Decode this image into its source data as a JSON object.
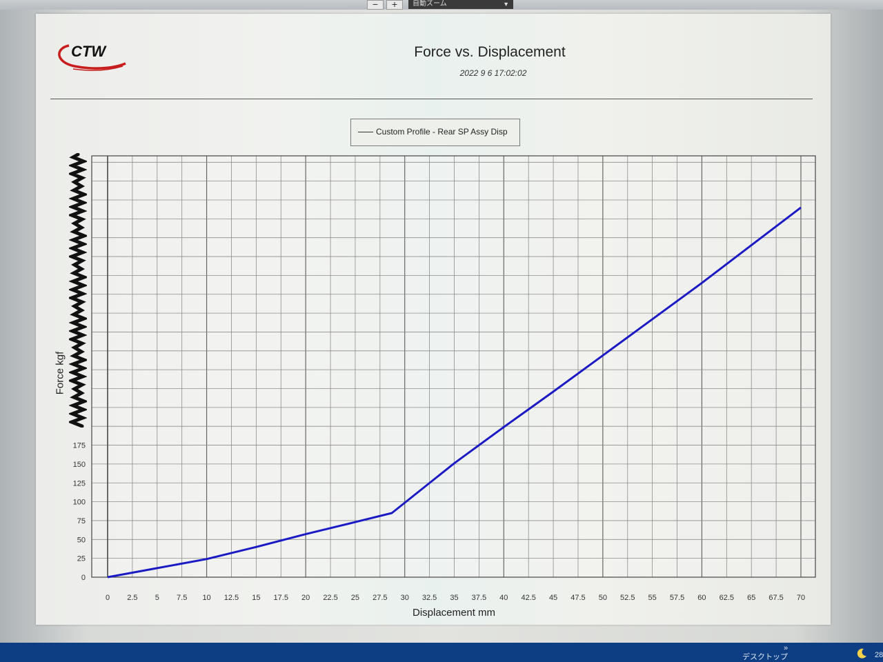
{
  "toolbar": {
    "minus_label": "−",
    "plus_label": "+",
    "zoom_value": "自動ズーム"
  },
  "logo": {
    "text": "CTW"
  },
  "report": {
    "title": "Force vs. Displacement",
    "timestamp": "2022 9 6  17:02:02"
  },
  "legend": {
    "entry": "Custom Profile - Rear SP Assy Disp"
  },
  "colors": {
    "series": "#1b1bc4",
    "grid": "#8c8c8c",
    "axis": "#444444"
  },
  "chart_data": {
    "type": "line",
    "title": "Force vs. Displacement",
    "xlabel": "Displacement mm",
    "ylabel": "Force kgf",
    "xlim": [
      0,
      70
    ],
    "ylim": [
      0,
      560
    ],
    "x_ticks": [
      "0",
      "2.5",
      "5",
      "7.5",
      "10",
      "12.5",
      "15",
      "17.5",
      "20",
      "22.5",
      "25",
      "27.5",
      "30",
      "32.5",
      "35",
      "37.5",
      "40",
      "42.5",
      "45",
      "47.5",
      "50",
      "52.5",
      "55",
      "57.5",
      "60",
      "62.5",
      "65",
      "67.5",
      "70"
    ],
    "y_ticks": [
      "0",
      "25",
      "50",
      "75",
      "100",
      "125",
      "150",
      "175"
    ],
    "grid": true,
    "legend_position": "top-center",
    "series": [
      {
        "name": "Custom Profile - Rear SP Assy Disp",
        "x": [
          0,
          5,
          10,
          15,
          20,
          25,
          28.7,
          35,
          40,
          45,
          50,
          55,
          60,
          65,
          70
        ],
        "y": [
          0,
          12,
          24,
          40,
          57,
          73,
          85,
          151,
          199,
          246,
          294,
          342,
          390,
          440,
          490
        ]
      }
    ]
  },
  "taskbar": {
    "desktop_label": "デスクトップ",
    "chevron": "»",
    "clock": "28"
  }
}
